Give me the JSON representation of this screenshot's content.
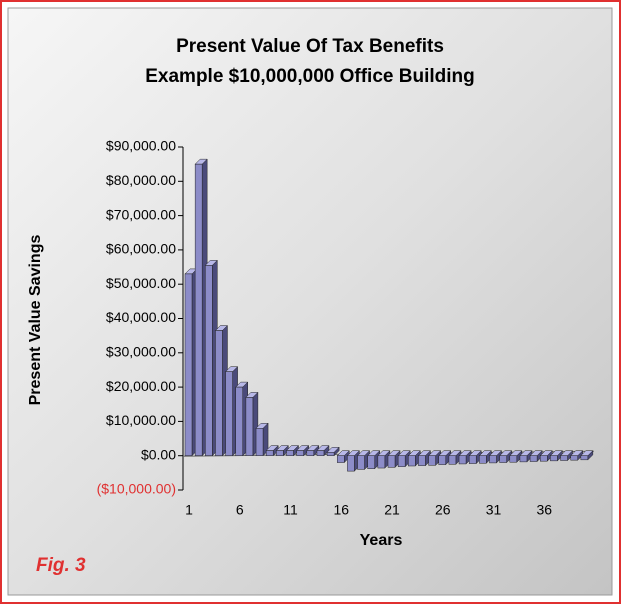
{
  "chart_data": {
    "type": "bar3d",
    "title": "Present Value Of Tax Benefits",
    "subtitle": "Example $10,000,000 Office Building",
    "y_label": "Present Value Savings",
    "x_label": "Years",
    "annotation": "Fig. 3",
    "color": "#8c8cc8",
    "categories": [
      "1",
      null,
      null,
      null,
      null,
      "6",
      null,
      null,
      null,
      null,
      "11",
      null,
      null,
      null,
      null,
      "16",
      null,
      null,
      null,
      null,
      "21",
      null,
      null,
      null,
      null,
      "26",
      null,
      null,
      null,
      null,
      "31",
      null,
      null,
      null,
      null,
      "36",
      null,
      null,
      null,
      null
    ],
    "values": [
      53000,
      85000,
      55500,
      36500,
      24500,
      20000,
      17000,
      8000,
      1500,
      1500,
      1500,
      1500,
      1500,
      1500,
      1000,
      -2000,
      -4500,
      -4000,
      -3800,
      -3600,
      -3400,
      -3200,
      -3000,
      -2900,
      -2800,
      -2600,
      -2500,
      -2400,
      -2300,
      -2200,
      -2100,
      -2000,
      -1900,
      -1800,
      -1700,
      -1600,
      -1500,
      -1400,
      -1300,
      -1200
    ],
    "ylim": [
      -10000,
      90000
    ],
    "yticks": [
      {
        "value": -10000,
        "label": "($10,000.00)"
      },
      {
        "value": 0,
        "label": "$0.00"
      },
      {
        "value": 10000,
        "label": "$10,000.00"
      },
      {
        "value": 20000,
        "label": "$20,000.00"
      },
      {
        "value": 30000,
        "label": "$30,000.00"
      },
      {
        "value": 40000,
        "label": "$40,000.00"
      },
      {
        "value": 50000,
        "label": "$50,000.00"
      },
      {
        "value": 60000,
        "label": "$60,000.00"
      },
      {
        "value": 70000,
        "label": "$70,000.00"
      },
      {
        "value": 80000,
        "label": "$80,000.00"
      },
      {
        "value": 90000,
        "label": "$90,000.00"
      }
    ]
  }
}
